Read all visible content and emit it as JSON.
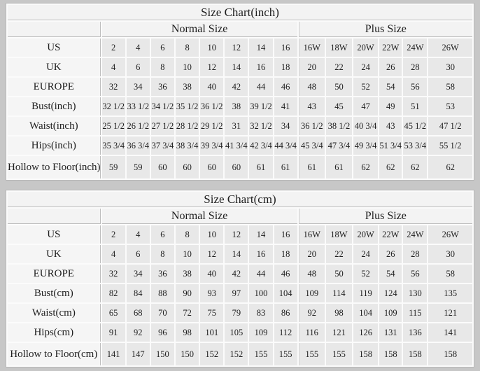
{
  "colors": {
    "page_background": "#c7c7c7",
    "table_gridline": "#fbfbfb",
    "structural_border": "#b6b6b6",
    "title_row_bg": "#f3f3f3",
    "label_column_bg": "#f5f5f5",
    "data_cell_bg": "#e8e8e8",
    "text": "#1e1e1e"
  },
  "chart_data": [
    {
      "type": "table",
      "title": "Size Chart(inch)",
      "section_headers": [
        "Normal Size",
        "Plus Size"
      ],
      "rows": [
        {
          "label": "US",
          "normal": [
            "2",
            "4",
            "6",
            "8",
            "10",
            "12",
            "14",
            "16"
          ],
          "plus": [
            "16W",
            "18W",
            "20W",
            "22W",
            "24W",
            "26W"
          ]
        },
        {
          "label": "UK",
          "normal": [
            "4",
            "6",
            "8",
            "10",
            "12",
            "14",
            "16",
            "18"
          ],
          "plus": [
            "20",
            "22",
            "24",
            "26",
            "28",
            "30"
          ]
        },
        {
          "label": "EUROPE",
          "normal": [
            "32",
            "34",
            "36",
            "38",
            "40",
            "42",
            "44",
            "46"
          ],
          "plus": [
            "48",
            "50",
            "52",
            "54",
            "56",
            "58"
          ]
        },
        {
          "label": "Bust(inch)",
          "normal": [
            "32 1/2",
            "33 1/2",
            "34 1/2",
            "35 1/2",
            "36 1/2",
            "38",
            "39 1/2",
            "41"
          ],
          "plus": [
            "43",
            "45",
            "47",
            "49",
            "51",
            "53"
          ]
        },
        {
          "label": "Waist(inch)",
          "normal": [
            "25 1/2",
            "26 1/2",
            "27 1/2",
            "28 1/2",
            "29 1/2",
            "31",
            "32 1/2",
            "34"
          ],
          "plus": [
            "36 1/2",
            "38 1/2",
            "40 3/4",
            "43",
            "45 1/2",
            "47 1/2"
          ]
        },
        {
          "label": "Hips(inch)",
          "normal": [
            "35 3/4",
            "36 3/4",
            "37 3/4",
            "38 3/4",
            "39 3/4",
            "41 3/4",
            "42 3/4",
            "44 3/4"
          ],
          "plus": [
            "45 3/4",
            "47 3/4",
            "49 3/4",
            "51 3/4",
            "53 3/4",
            "55 1/2"
          ]
        },
        {
          "label": "Hollow to Floor(inch)",
          "normal": [
            "59",
            "59",
            "60",
            "60",
            "60",
            "60",
            "61",
            "61"
          ],
          "plus": [
            "61",
            "61",
            "62",
            "62",
            "62",
            "62"
          ]
        }
      ]
    },
    {
      "type": "table",
      "title": "Size Chart(cm)",
      "section_headers": [
        "Normal Size",
        "Plus Size"
      ],
      "rows": [
        {
          "label": "US",
          "normal": [
            "2",
            "4",
            "6",
            "8",
            "10",
            "12",
            "14",
            "16"
          ],
          "plus": [
            "16W",
            "18W",
            "20W",
            "22W",
            "24W",
            "26W"
          ]
        },
        {
          "label": "UK",
          "normal": [
            "4",
            "6",
            "8",
            "10",
            "12",
            "14",
            "16",
            "18"
          ],
          "plus": [
            "20",
            "22",
            "24",
            "26",
            "28",
            "30"
          ]
        },
        {
          "label": "EUROPE",
          "normal": [
            "32",
            "34",
            "36",
            "38",
            "40",
            "42",
            "44",
            "46"
          ],
          "plus": [
            "48",
            "50",
            "52",
            "54",
            "56",
            "58"
          ]
        },
        {
          "label": "Bust(cm)",
          "normal": [
            "82",
            "84",
            "88",
            "90",
            "93",
            "97",
            "100",
            "104"
          ],
          "plus": [
            "109",
            "114",
            "119",
            "124",
            "130",
            "135"
          ]
        },
        {
          "label": "Waist(cm)",
          "normal": [
            "65",
            "68",
            "70",
            "72",
            "75",
            "79",
            "83",
            "86"
          ],
          "plus": [
            "92",
            "98",
            "104",
            "109",
            "115",
            "121"
          ]
        },
        {
          "label": "Hips(cm)",
          "normal": [
            "91",
            "92",
            "96",
            "98",
            "101",
            "105",
            "109",
            "112"
          ],
          "plus": [
            "116",
            "121",
            "126",
            "131",
            "136",
            "141"
          ]
        },
        {
          "label": "Hollow to Floor(cm)",
          "normal": [
            "141",
            "147",
            "150",
            "150",
            "152",
            "152",
            "155",
            "155"
          ],
          "plus": [
            "155",
            "155",
            "158",
            "158",
            "158",
            "158"
          ]
        }
      ]
    }
  ]
}
